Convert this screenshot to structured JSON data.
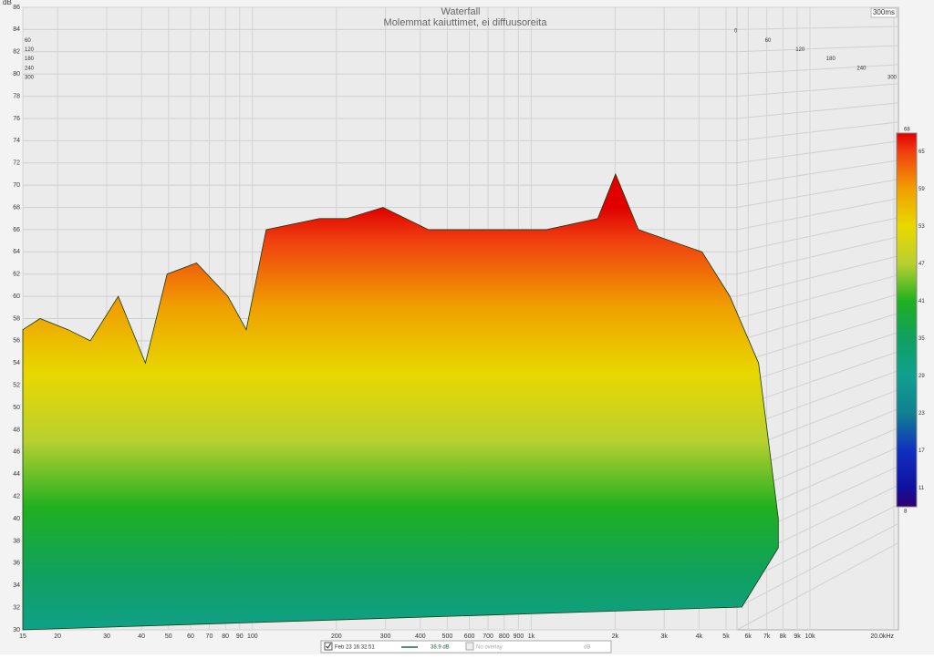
{
  "chart_data": {
    "type": "waterfall",
    "title": "Waterfall",
    "subtitle": "Molemmat kaiuttimet, ei diffuusoreita",
    "y_label": "dB",
    "x": [
      15,
      17.3,
      21.8,
      26.2,
      33,
      41.3,
      49.4,
      63,
      81.6,
      95,
      112,
      174,
      218,
      294,
      428,
      727,
      1135,
      1732,
      2007,
      2424,
      4100,
      5160,
      6540,
      7700
    ],
    "values": [
      57,
      58,
      57,
      56,
      60,
      54,
      62,
      63,
      60,
      57,
      66,
      67,
      67,
      68,
      66,
      66,
      66,
      67,
      71,
      66,
      64,
      60,
      54,
      40
    ],
    "xlim": [
      15,
      20000
    ],
    "xscale": "log",
    "xticks": [
      15,
      20,
      30,
      40,
      50,
      60,
      70,
      80,
      90,
      100,
      200,
      300,
      400,
      500,
      600,
      700,
      800,
      900,
      {
        "value": 1000,
        "label": "1k"
      },
      {
        "value": 2000,
        "label": "2k"
      },
      {
        "value": 3000,
        "label": "3k"
      },
      {
        "value": 4000,
        "label": "4k"
      },
      {
        "value": 5000,
        "label": "5k"
      },
      {
        "value": 6000,
        "label": "6k"
      },
      {
        "value": 7000,
        "label": "7k"
      },
      {
        "value": 8000,
        "label": "8k"
      },
      {
        "value": 9000,
        "label": "9k"
      },
      {
        "value": 10000,
        "label": "10k"
      },
      {
        "value": 20000,
        "label": "20.0kHz"
      }
    ],
    "ylim": [
      30,
      86
    ],
    "yticks": [
      30,
      32,
      34,
      36,
      38,
      40,
      42,
      44,
      46,
      48,
      50,
      52,
      54,
      56,
      58,
      60,
      62,
      64,
      66,
      68,
      70,
      72,
      74,
      76,
      78,
      80,
      82,
      84,
      86
    ],
    "grid": true,
    "time_ticks": [
      0,
      60,
      120,
      180,
      240,
      300
    ],
    "time_label": "300ms",
    "colorbar": {
      "lim": [
        8,
        68
      ],
      "ticks": [
        68,
        65,
        59,
        53,
        47,
        41,
        35,
        29,
        23,
        17,
        11,
        8
      ],
      "colors": [
        "#e00000",
        "#f04010",
        "#f0a000",
        "#e8d800",
        "#b8d030",
        "#20b020",
        "#10a060",
        "#10a090",
        "#108090",
        "#1030c0",
        "#1010a0",
        "#300070"
      ]
    },
    "legend": {
      "date": "Feb 23 16:32:51",
      "level": "38.9 dB",
      "overlay": "No overlay",
      "unit": "dB"
    }
  }
}
